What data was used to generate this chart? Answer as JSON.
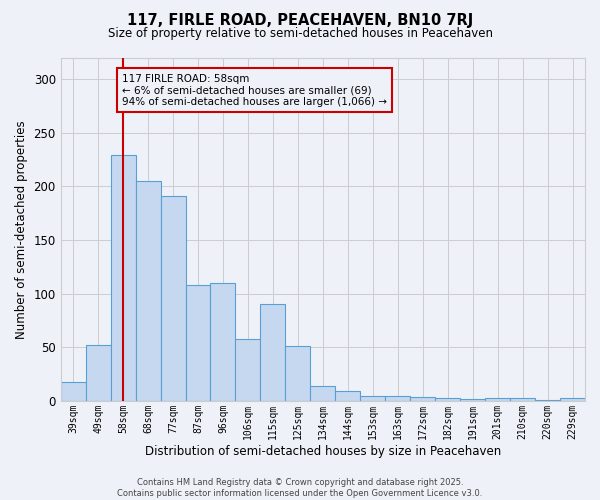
{
  "title": "117, FIRLE ROAD, PEACEHAVEN, BN10 7RJ",
  "subtitle": "Size of property relative to semi-detached houses in Peacehaven",
  "xlabel": "Distribution of semi-detached houses by size in Peacehaven",
  "ylabel": "Number of semi-detached properties",
  "categories": [
    "39sqm",
    "49sqm",
    "58sqm",
    "68sqm",
    "77sqm",
    "87sqm",
    "96sqm",
    "106sqm",
    "115sqm",
    "125sqm",
    "134sqm",
    "144sqm",
    "153sqm",
    "163sqm",
    "172sqm",
    "182sqm",
    "191sqm",
    "201sqm",
    "210sqm",
    "220sqm",
    "229sqm"
  ],
  "values": [
    18,
    52,
    229,
    205,
    191,
    108,
    110,
    58,
    90,
    51,
    14,
    9,
    5,
    5,
    4,
    3,
    2,
    3,
    3,
    1,
    3
  ],
  "bar_color": "#c5d8f0",
  "bar_edge_color": "#5a9fd4",
  "highlight_bar_index": 2,
  "highlight_line_color": "#cc0000",
  "annotation_text": "117 FIRLE ROAD: 58sqm\n← 6% of semi-detached houses are smaller (69)\n94% of semi-detached houses are larger (1,066) →",
  "annotation_box_color": "#cc0000",
  "ylim": [
    0,
    320
  ],
  "yticks": [
    0,
    50,
    100,
    150,
    200,
    250,
    300
  ],
  "grid_color": "#cccccc",
  "background_color": "#eef2f8",
  "footer_line1": "Contains HM Land Registry data © Crown copyright and database right 2025.",
  "footer_line2": "Contains public sector information licensed under the Open Government Licence v3.0."
}
